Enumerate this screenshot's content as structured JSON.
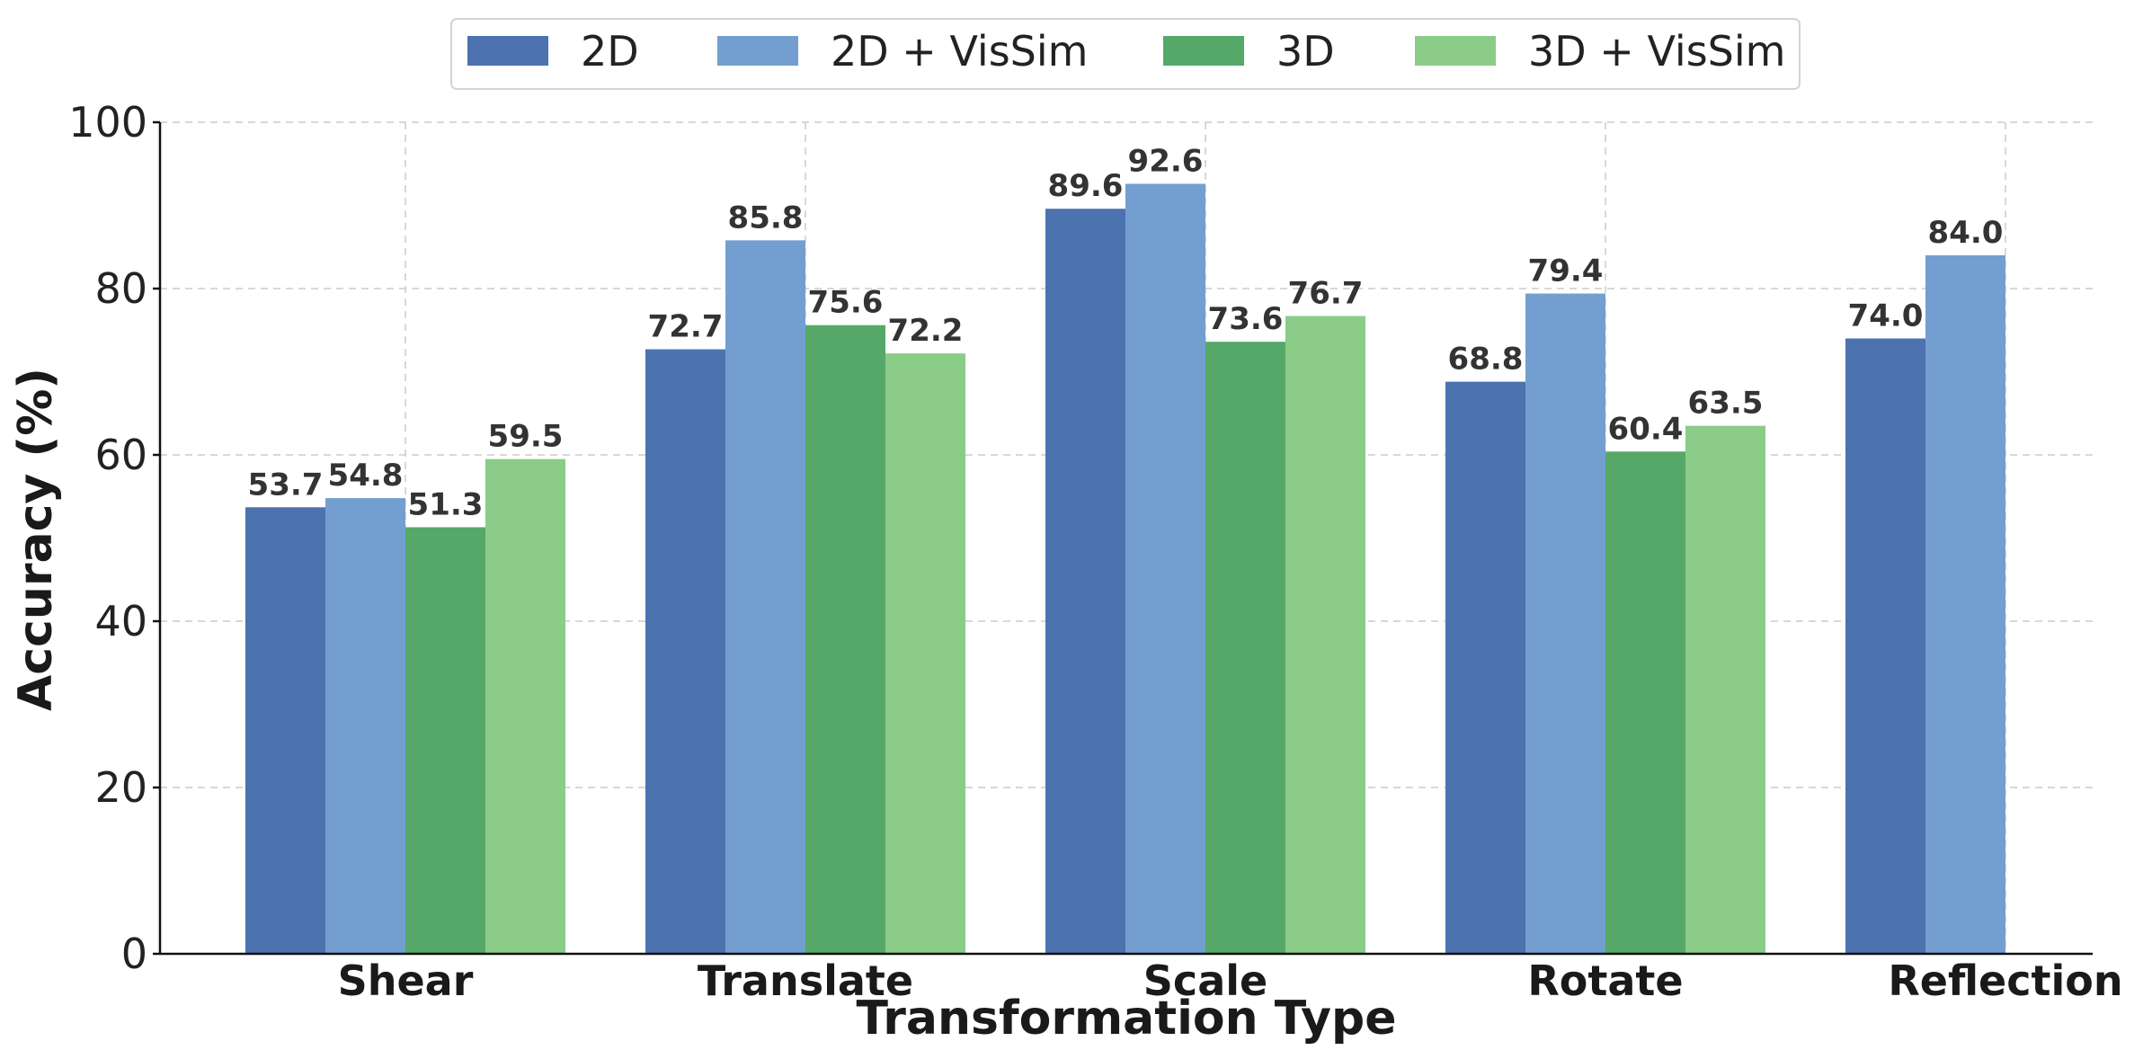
{
  "chart_data": {
    "type": "bar",
    "title": "",
    "xlabel": "Transformation Type",
    "ylabel": "Accuracy (%)",
    "ylim": [
      0,
      100
    ],
    "yticks": [
      0,
      20,
      40,
      60,
      80,
      100
    ],
    "grid": true,
    "legend_position": "top-center",
    "categories": [
      "Shear",
      "Translate",
      "Scale",
      "Rotate",
      "Reflection"
    ],
    "series": [
      {
        "name": "2D",
        "color": "#4c72b0",
        "values": [
          53.7,
          72.7,
          89.6,
          68.8,
          74.0
        ],
        "labels": [
          "53.7",
          "72.7",
          "89.6",
          "68.8",
          "74.0"
        ]
      },
      {
        "name": "2D + VisSim",
        "color": "#739fd0",
        "values": [
          54.8,
          85.8,
          92.6,
          79.4,
          84.0
        ],
        "labels": [
          "54.8",
          "85.8",
          "92.6",
          "79.4",
          "84.0"
        ]
      },
      {
        "name": "3D",
        "color": "#55a868",
        "values": [
          51.3,
          75.6,
          73.6,
          60.4,
          null
        ],
        "labels": [
          "51.3",
          "75.6",
          "73.6",
          "60.4",
          null
        ]
      },
      {
        "name": "3D + VisSim",
        "color": "#8acc88",
        "values": [
          59.5,
          72.2,
          76.7,
          63.5,
          null
        ],
        "labels": [
          "59.5",
          "72.2",
          "76.7",
          "63.5",
          null
        ]
      }
    ]
  }
}
